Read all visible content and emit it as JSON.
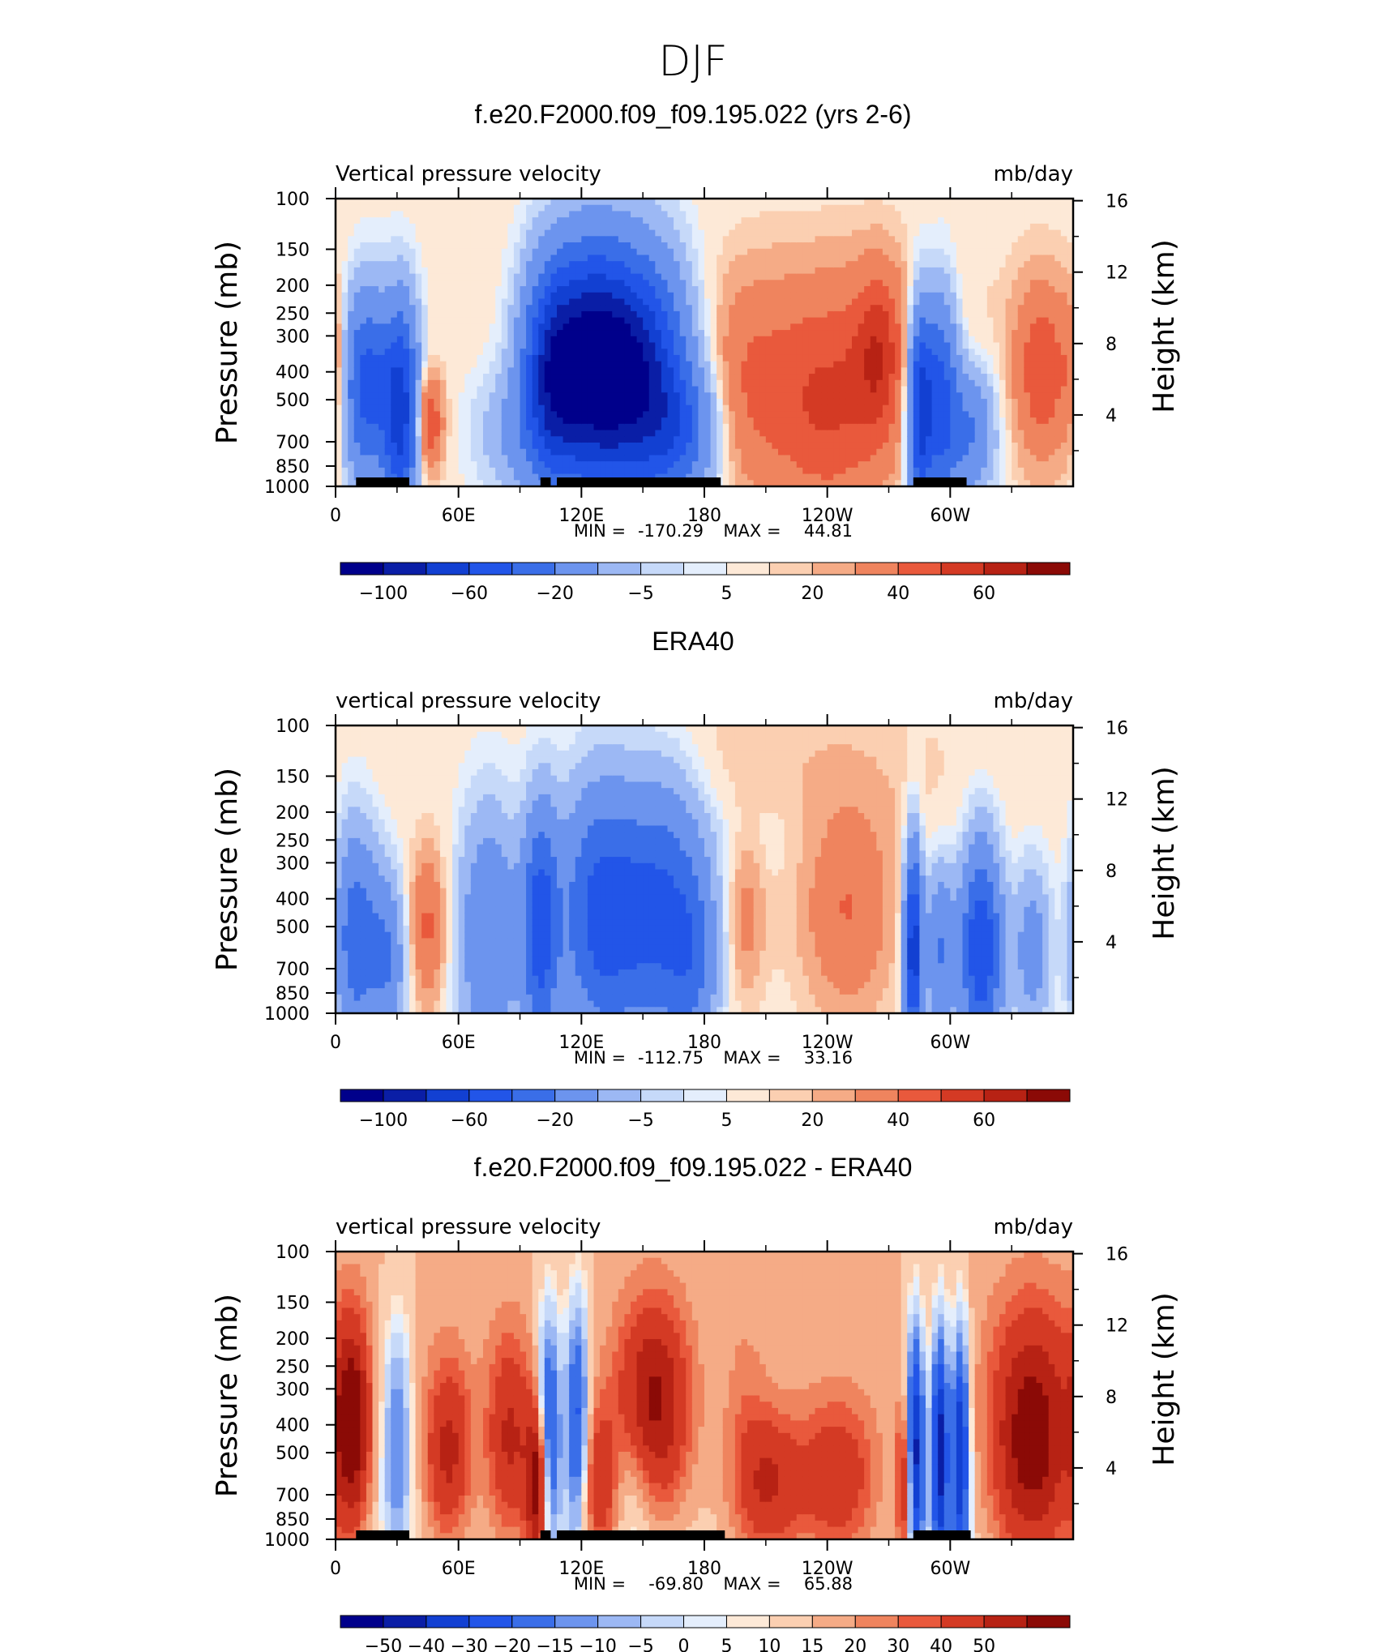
{
  "figure": {
    "title": "DJF"
  },
  "chart_data": [
    {
      "type": "heatmap",
      "title": "f.e20.F2000.f09_f09.195.022 (yrs 2-6)",
      "left_label": "Vertical pressure velocity",
      "right_label": "mb/day",
      "ylabel": "Pressure (mb)",
      "ylabel_right": "Height (km)",
      "x_ticks": [
        "0",
        "60E",
        "120E",
        "180",
        "120W",
        "60W"
      ],
      "y_ticks": [
        "100",
        "150",
        "200",
        "250",
        "300",
        "400",
        "500",
        "700",
        "850",
        "1000"
      ],
      "y_ticks_right": [
        "16",
        "12",
        "8",
        "4"
      ],
      "ylim": [
        1000,
        100
      ],
      "xlim": [
        0,
        360
      ],
      "min_label": "MIN =",
      "min_value": "-170.29",
      "max_label": "MAX =",
      "max_value": "44.81",
      "colorbar_labels": [
        "-100",
        "-60",
        "-20",
        "-5",
        "5",
        "20",
        "40",
        "60"
      ],
      "colorbar_colors": [
        "#00008b",
        "#0a1ea6",
        "#1240d2",
        "#2255e8",
        "#3a6ee8",
        "#6c94ee",
        "#9cb8f4",
        "#c6d9f9",
        "#e4eefc",
        "#fde9d7",
        "#fbcfb1",
        "#f5ab86",
        "#ef845e",
        "#e9593c",
        "#d43a24",
        "#b72214",
        "#8b0a06"
      ],
      "terrain_lon_ranges": [
        [
          10,
          36
        ],
        [
          100,
          105
        ],
        [
          108,
          188
        ],
        [
          282,
          308
        ]
      ]
    },
    {
      "type": "heatmap",
      "title": "ERA40",
      "left_label": "vertical pressure velocity",
      "right_label": "mb/day",
      "ylabel": "Pressure (mb)",
      "ylabel_right": "Height (km)",
      "x_ticks": [
        "0",
        "60E",
        "120E",
        "180",
        "120W",
        "60W"
      ],
      "y_ticks": [
        "100",
        "150",
        "200",
        "250",
        "300",
        "400",
        "500",
        "700",
        "850",
        "1000"
      ],
      "y_ticks_right": [
        "16",
        "12",
        "8",
        "4"
      ],
      "ylim": [
        1000,
        100
      ],
      "xlim": [
        0,
        360
      ],
      "min_label": "MIN =",
      "min_value": "-112.75",
      "max_label": "MAX =",
      "max_value": "33.16",
      "colorbar_labels": [
        "-100",
        "-60",
        "-20",
        "-5",
        "5",
        "20",
        "40",
        "60"
      ],
      "colorbar_colors": [
        "#00008b",
        "#0a1ea6",
        "#1240d2",
        "#2255e8",
        "#3a6ee8",
        "#6c94ee",
        "#9cb8f4",
        "#c6d9f9",
        "#e4eefc",
        "#fde9d7",
        "#fbcfb1",
        "#f5ab86",
        "#ef845e",
        "#e9593c",
        "#d43a24",
        "#b72214",
        "#8b0a06"
      ],
      "terrain_lon_ranges": []
    },
    {
      "type": "heatmap",
      "title": "f.e20.F2000.f09_f09.195.022 - ERA40",
      "left_label": "vertical pressure velocity",
      "right_label": "mb/day",
      "ylabel": "Pressure (mb)",
      "ylabel_right": "Height (km)",
      "x_ticks": [
        "0",
        "60E",
        "120E",
        "180",
        "120W",
        "60W"
      ],
      "y_ticks": [
        "100",
        "150",
        "200",
        "250",
        "300",
        "400",
        "500",
        "700",
        "850",
        "1000"
      ],
      "y_ticks_right": [
        "16",
        "12",
        "8",
        "4"
      ],
      "ylim": [
        1000,
        100
      ],
      "xlim": [
        0,
        360
      ],
      "min_label": "MIN =",
      "min_value": "-69.80",
      "max_label": "MAX =",
      "max_value": "65.88",
      "colorbar_labels": [
        "-50",
        "-40",
        "-30",
        "-20",
        "-15",
        "-10",
        "-5",
        "0",
        "5",
        "10",
        "15",
        "20",
        "30",
        "40",
        "50"
      ],
      "colorbar_colors": [
        "#00008b",
        "#0a1ea6",
        "#1240d2",
        "#2255e8",
        "#3a6ee8",
        "#6c94ee",
        "#9cb8f4",
        "#c6d9f9",
        "#e4eefc",
        "#fde9d7",
        "#fbcfb1",
        "#f5ab86",
        "#ef845e",
        "#e9593c",
        "#d43a24",
        "#b72214",
        "#8b0a06"
      ],
      "terrain_lon_ranges": [
        [
          10,
          36
        ],
        [
          100,
          105
        ],
        [
          108,
          190
        ],
        [
          282,
          310
        ]
      ]
    }
  ]
}
